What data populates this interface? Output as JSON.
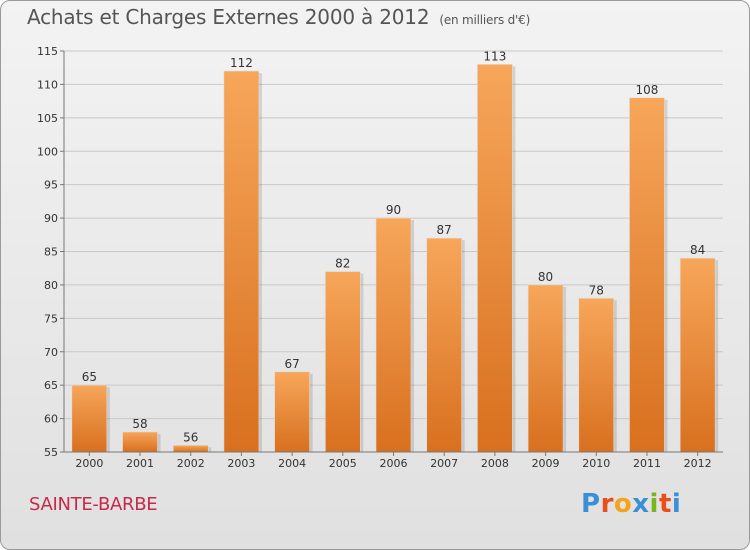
{
  "title": "Achats et Charges Externes 2000 à 2012",
  "unit": "(en milliers d'€)",
  "commune": "SAINTE-BARBE",
  "logo": {
    "letters": [
      "P",
      "r",
      "o",
      "x",
      "i",
      "t",
      "i"
    ],
    "colors": [
      "#3a8fd6",
      "#e94e1b",
      "#f5a31a",
      "#3a8fd6",
      "#7ab51d",
      "#e94e1b",
      "#3a8fd6"
    ]
  },
  "colors": {
    "bar_light": "#f7a65a",
    "bar_dark": "#d8701f",
    "title": "#555555",
    "commune": "#c8294b"
  },
  "chart_data": {
    "type": "bar",
    "categories": [
      "2000",
      "2001",
      "2002",
      "2003",
      "2004",
      "2005",
      "2006",
      "2007",
      "2008",
      "2009",
      "2010",
      "2011",
      "2012"
    ],
    "values": [
      65,
      58,
      56,
      112,
      67,
      82,
      90,
      87,
      113,
      80,
      78,
      108,
      84
    ],
    "ylim": [
      55,
      115
    ],
    "yticks": [
      55,
      60,
      65,
      70,
      75,
      80,
      85,
      90,
      95,
      100,
      105,
      110,
      115
    ],
    "grid": true,
    "legend": "none"
  }
}
